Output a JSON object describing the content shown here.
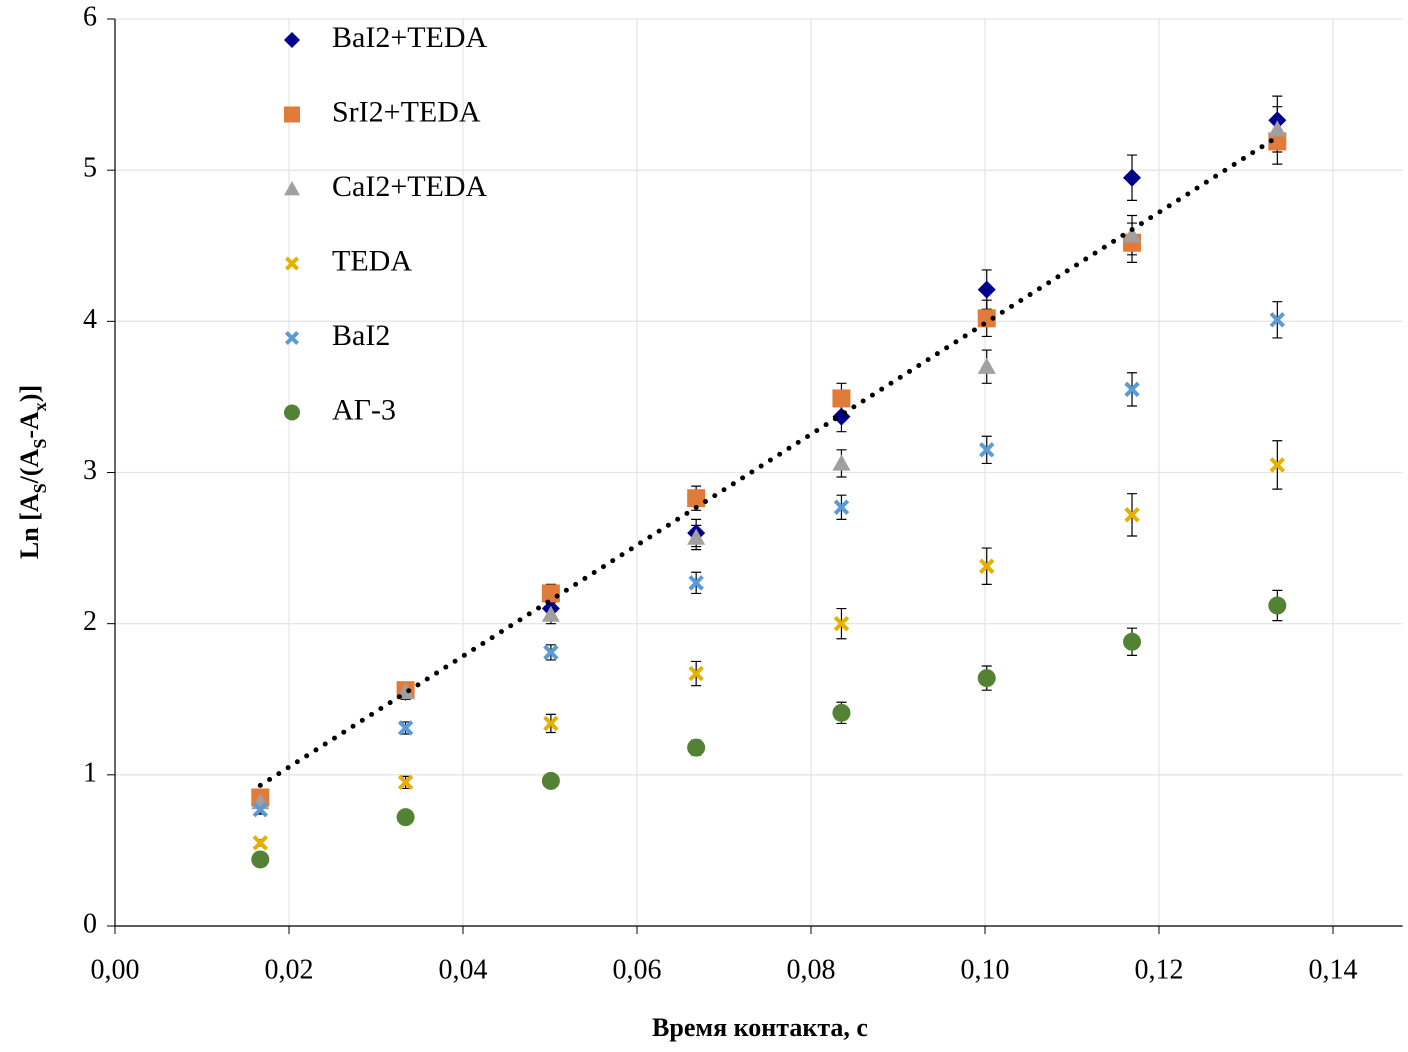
{
  "chart_data": {
    "type": "scatter",
    "x": [
      0.0167,
      0.0334,
      0.0501,
      0.0668,
      0.0835,
      0.1002,
      0.1169,
      0.1336
    ],
    "series": [
      {
        "name": "BaI2+TEDA",
        "color": "#00008b",
        "marker": "diamond",
        "values": [
          0.85,
          1.55,
          2.1,
          2.6,
          3.37,
          4.21,
          4.95,
          5.33
        ],
        "errors": [
          0.03,
          0.05,
          0.07,
          0.09,
          0.1,
          0.13,
          0.15,
          0.16
        ]
      },
      {
        "name": "SrI2+TEDA",
        "color": "#e07b39",
        "marker": "square",
        "values": [
          0.85,
          1.56,
          2.2,
          2.83,
          3.49,
          4.02,
          4.52,
          5.19
        ],
        "errors": [
          0.03,
          0.05,
          0.06,
          0.08,
          0.1,
          0.12,
          0.13,
          0.15
        ]
      },
      {
        "name": "CaI2+TEDA",
        "color": "#a0a0a0",
        "marker": "triangle",
        "values": [
          0.82,
          1.55,
          2.06,
          2.57,
          3.06,
          3.7,
          4.57,
          5.27
        ],
        "errors": [
          0.03,
          0.05,
          0.06,
          0.08,
          0.09,
          0.11,
          0.13,
          0.15
        ]
      },
      {
        "name": "TEDA",
        "color": "#e6b000",
        "marker": "x",
        "values": [
          0.55,
          0.95,
          1.34,
          1.67,
          2.0,
          2.38,
          2.72,
          3.05
        ],
        "errors": [
          0.02,
          0.04,
          0.06,
          0.08,
          0.1,
          0.12,
          0.14,
          0.16
        ]
      },
      {
        "name": "BaI2",
        "color": "#5b9bd5",
        "marker": "x",
        "values": [
          0.77,
          1.31,
          1.81,
          2.27,
          2.77,
          3.15,
          3.55,
          4.01
        ],
        "errors": [
          0.03,
          0.04,
          0.05,
          0.07,
          0.08,
          0.09,
          0.11,
          0.12
        ]
      },
      {
        "name": "АГ-3",
        "color": "#548235",
        "marker": "circle",
        "values": [
          0.44,
          0.72,
          0.96,
          1.18,
          1.41,
          1.64,
          1.88,
          2.12
        ],
        "errors": [
          0.02,
          0.03,
          0.04,
          0.05,
          0.07,
          0.08,
          0.09,
          0.1
        ]
      }
    ],
    "trendline": {
      "x": [
        0.0167,
        0.1336
      ],
      "y": [
        0.93,
        5.22
      ],
      "color": "#000000"
    },
    "xlim": [
      0,
      0.148
    ],
    "ylim": [
      0,
      6
    ],
    "xticks": [
      {
        "value": 0,
        "label": "0,00"
      },
      {
        "value": 0.02,
        "label": "0,02"
      },
      {
        "value": 0.04,
        "label": "0,04"
      },
      {
        "value": 0.06,
        "label": "0,06"
      },
      {
        "value": 0.08,
        "label": "0,08"
      },
      {
        "value": 0.1,
        "label": "0,10"
      },
      {
        "value": 0.12,
        "label": "0,12"
      },
      {
        "value": 0.14,
        "label": "0,14"
      }
    ],
    "yticks": [
      0,
      1,
      2,
      3,
      4,
      5,
      6
    ],
    "xlabel": "Время контакта, с",
    "ylabel": [
      "Ln [A",
      "S",
      "/(A",
      "S",
      "-A",
      "x",
      ")]"
    ],
    "grid": true,
    "legend": "upper left"
  }
}
